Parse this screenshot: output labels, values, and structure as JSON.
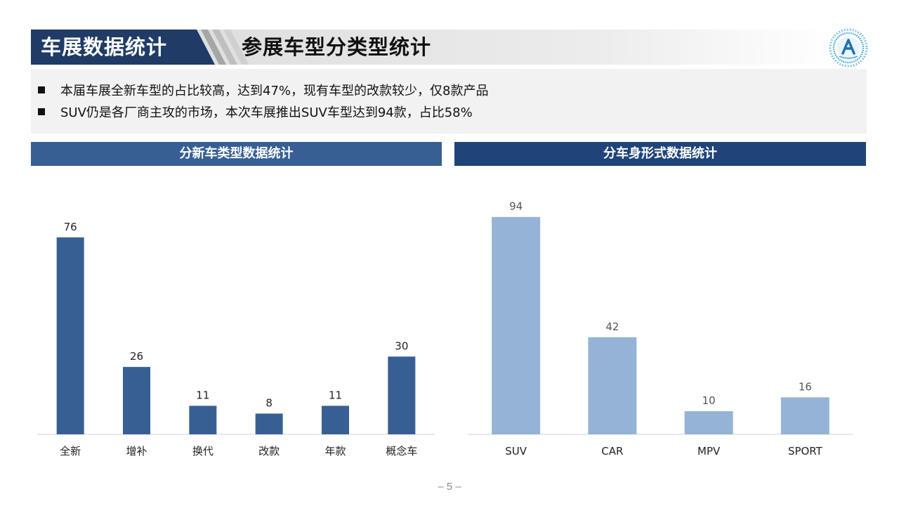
{
  "header": {
    "section_title": "车展数据统计",
    "page_title": "参展车型分类型统计",
    "colors": {
      "dark": "#1f3b66",
      "light": "#e6e6e6"
    },
    "logo_icon": "auto-show-logo-icon"
  },
  "summary": {
    "bullets": [
      "本届车展全新车型的占比较高，达到47%，现有车型的改款较少，仅8款产品",
      "SUV仍是各厂商主攻的市场，本次车展推出SUV车型达到94款，占比58%"
    ]
  },
  "chart_data": [
    {
      "type": "bar",
      "title": "分新车类型数据统计",
      "categories": [
        "全新",
        "增补",
        "换代",
        "改款",
        "年款",
        "概念车"
      ],
      "values": [
        76,
        26,
        11,
        8,
        11,
        30
      ],
      "ylim": [
        0,
        80
      ],
      "grid": false,
      "legend": "none",
      "color": "#375f94"
    },
    {
      "type": "bar",
      "title": "分车身形式数据统计",
      "categories": [
        "SUV",
        "CAR",
        "MPV",
        "SPORT"
      ],
      "values": [
        94,
        42,
        10,
        16
      ],
      "ylim": [
        0,
        100
      ],
      "grid": false,
      "legend": "none",
      "color": "#95b3d7"
    }
  ],
  "footer": {
    "page": "– 5 –"
  }
}
